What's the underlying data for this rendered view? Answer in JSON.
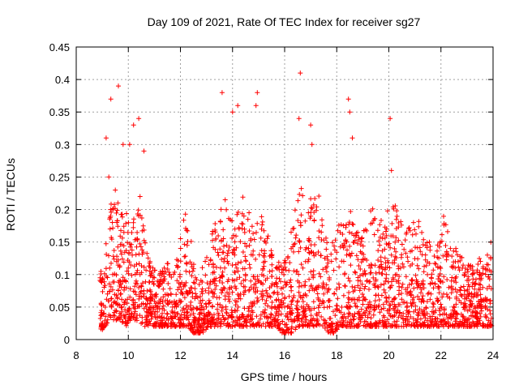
{
  "chart_data": {
    "type": "scatter",
    "title": "Day 109 of 2021, Rate Of TEC Index for receiver sg27",
    "xlabel": "GPS time / hours",
    "ylabel": "ROTI / TECUs",
    "xlim": [
      8,
      24
    ],
    "ylim": [
      0,
      0.45
    ],
    "x_ticks": [
      8,
      10,
      12,
      14,
      16,
      18,
      20,
      22,
      24
    ],
    "y_ticks": [
      0,
      0.05,
      0.1,
      0.15,
      0.2,
      0.25,
      0.3,
      0.35,
      0.4,
      0.45
    ],
    "x_tick_labels": [
      "8",
      "10",
      "12",
      "14",
      "16",
      "18",
      "20",
      "22",
      "24"
    ],
    "y_tick_labels": [
      "0",
      "0.05",
      "0.1",
      "0.15",
      "0.2",
      "0.25",
      "0.3",
      "0.35",
      "0.4",
      "0.45"
    ],
    "grid": true,
    "marker": "+",
    "marker_color": "#ff0000",
    "series": [
      {
        "x": [
          9.05,
          9.2,
          9.4,
          9.55,
          9.7,
          9.85,
          10.0,
          10.15,
          10.3,
          10.45,
          10.6,
          10.75,
          10.9,
          11.1,
          11.3,
          11.5,
          11.7,
          11.9,
          12.1,
          12.3,
          12.5,
          12.7,
          12.9,
          13.1,
          13.3,
          13.5,
          13.7,
          13.9,
          14.1,
          14.3,
          14.5,
          14.7,
          14.9,
          15.1,
          15.3,
          15.5,
          15.7,
          15.9,
          16.1,
          16.3,
          16.5,
          16.7,
          16.9,
          17.1,
          17.3,
          17.5,
          17.7,
          17.9,
          18.1,
          18.3,
          18.5,
          18.7,
          18.9,
          19.1,
          19.3,
          19.5,
          19.7,
          19.9,
          20.1,
          20.3,
          20.5,
          20.7,
          20.9,
          21.1,
          21.3,
          21.5,
          21.7,
          21.9,
          22.1,
          22.3,
          22.5,
          22.7,
          22.9,
          23.1,
          23.3,
          23.5,
          23.7,
          23.9,
          9.15,
          9.33,
          9.62,
          9.8,
          10.05,
          10.4,
          10.6,
          10.2,
          13.6,
          14.0,
          14.2,
          14.95,
          14.9,
          16.6,
          16.55,
          17.0,
          17.05,
          18.45,
          18.5,
          18.6,
          20.05,
          20.1,
          9.25,
          9.5,
          9.6,
          10.45
        ],
        "y": [
          0.04,
          0.07,
          0.1,
          0.12,
          0.09,
          0.08,
          0.11,
          0.13,
          0.09,
          0.1,
          0.07,
          0.06,
          0.05,
          0.05,
          0.04,
          0.06,
          0.05,
          0.04,
          0.07,
          0.05,
          0.04,
          0.03,
          0.04,
          0.06,
          0.07,
          0.09,
          0.11,
          0.08,
          0.06,
          0.07,
          0.1,
          0.09,
          0.08,
          0.07,
          0.06,
          0.05,
          0.04,
          0.05,
          0.04,
          0.06,
          0.09,
          0.11,
          0.12,
          0.1,
          0.08,
          0.07,
          0.06,
          0.07,
          0.08,
          0.1,
          0.09,
          0.08,
          0.09,
          0.1,
          0.11,
          0.09,
          0.12,
          0.1,
          0.13,
          0.1,
          0.08,
          0.07,
          0.09,
          0.08,
          0.06,
          0.07,
          0.05,
          0.06,
          0.07,
          0.08,
          0.09,
          0.06,
          0.05,
          0.06,
          0.05,
          0.04,
          0.05,
          0.06,
          0.31,
          0.37,
          0.39,
          0.3,
          0.3,
          0.34,
          0.29,
          0.33,
          0.38,
          0.35,
          0.36,
          0.38,
          0.36,
          0.41,
          0.34,
          0.33,
          0.3,
          0.37,
          0.35,
          0.31,
          0.34,
          0.26,
          0.25,
          0.23,
          0.21,
          0.22
        ]
      }
    ],
    "density_envelope": {
      "x": [
        8.9,
        9.1,
        9.3,
        9.5,
        9.7,
        9.9,
        10.1,
        10.3,
        10.5,
        10.7,
        10.9,
        11.1,
        11.3,
        11.5,
        11.7,
        11.9,
        12.1,
        12.3,
        12.5,
        12.7,
        12.9,
        13.1,
        13.3,
        13.5,
        13.7,
        13.9,
        14.1,
        14.3,
        14.5,
        14.7,
        14.9,
        15.1,
        15.3,
        15.5,
        15.7,
        15.9,
        16.1,
        16.3,
        16.5,
        16.7,
        16.9,
        17.1,
        17.3,
        17.5,
        17.7,
        17.9,
        18.1,
        18.3,
        18.5,
        18.7,
        18.9,
        19.1,
        19.3,
        19.5,
        19.7,
        19.9,
        20.1,
        20.3,
        20.5,
        20.7,
        20.9,
        21.1,
        21.3,
        21.5,
        21.7,
        21.9,
        22.1,
        22.3,
        22.5,
        22.7,
        22.9,
        23.1,
        23.3,
        23.5,
        23.7,
        23.95
      ],
      "upper": [
        0.1,
        0.14,
        0.22,
        0.21,
        0.2,
        0.19,
        0.22,
        0.21,
        0.2,
        0.15,
        0.12,
        0.1,
        0.11,
        0.12,
        0.1,
        0.13,
        0.22,
        0.19,
        0.15,
        0.1,
        0.12,
        0.14,
        0.19,
        0.2,
        0.22,
        0.2,
        0.19,
        0.21,
        0.23,
        0.2,
        0.18,
        0.2,
        0.17,
        0.14,
        0.12,
        0.13,
        0.12,
        0.19,
        0.22,
        0.24,
        0.23,
        0.22,
        0.24,
        0.18,
        0.15,
        0.16,
        0.19,
        0.18,
        0.2,
        0.19,
        0.17,
        0.19,
        0.21,
        0.2,
        0.19,
        0.21,
        0.22,
        0.21,
        0.18,
        0.17,
        0.18,
        0.19,
        0.16,
        0.15,
        0.17,
        0.15,
        0.19,
        0.16,
        0.15,
        0.14,
        0.13,
        0.12,
        0.11,
        0.13,
        0.12,
        0.16
      ],
      "lower": [
        0.01,
        0.02,
        0.03,
        0.03,
        0.03,
        0.02,
        0.03,
        0.03,
        0.02,
        0.02,
        0.02,
        0.02,
        0.02,
        0.02,
        0.02,
        0.02,
        0.02,
        0.02,
        0.01,
        0.01,
        0.01,
        0.02,
        0.02,
        0.02,
        0.02,
        0.02,
        0.02,
        0.02,
        0.02,
        0.02,
        0.02,
        0.02,
        0.02,
        0.02,
        0.02,
        0.01,
        0.01,
        0.01,
        0.02,
        0.02,
        0.02,
        0.02,
        0.02,
        0.02,
        0.01,
        0.01,
        0.02,
        0.02,
        0.02,
        0.02,
        0.02,
        0.02,
        0.02,
        0.02,
        0.02,
        0.02,
        0.02,
        0.02,
        0.02,
        0.02,
        0.02,
        0.02,
        0.02,
        0.02,
        0.02,
        0.02,
        0.02,
        0.02,
        0.02,
        0.02,
        0.02,
        0.02,
        0.02,
        0.02,
        0.02,
        0.02
      ]
    }
  }
}
